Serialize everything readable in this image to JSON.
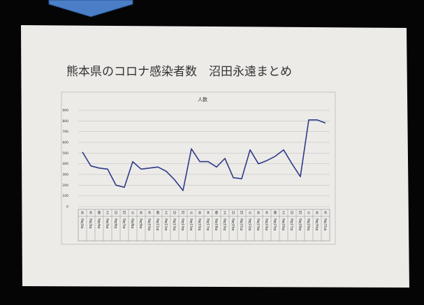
{
  "chart_data": {
    "type": "line",
    "title": "熊本県のコロナ感染者数　沼田永遠まとめ",
    "chart_title": "人数",
    "categories": [
      "8月2日",
      "8月3日",
      "8月4日",
      "8月5日",
      "8月6日",
      "8月7日",
      "8月8日",
      "8月9日",
      "8月10日",
      "8月11日",
      "8月12日",
      "8月13日",
      "8月14日",
      "8月15日",
      "8月16日",
      "8月17日",
      "8月18日",
      "8月19日",
      "8月20日",
      "8月21日",
      "8月22日",
      "8月23日",
      "8月24日",
      "8月25日",
      "8月26日",
      "8月27日",
      "8月28日",
      "8月29日",
      "8月30日",
      "8月31日"
    ],
    "weekdays": [
      "水",
      "木",
      "金",
      "土",
      "日",
      "月",
      "火",
      "水",
      "木",
      "金",
      "土",
      "日",
      "月",
      "火",
      "水",
      "木",
      "金",
      "土",
      "日",
      "月",
      "火",
      "水",
      "木",
      "金",
      "土",
      "日",
      "月",
      "火",
      "水",
      "木"
    ],
    "series": [
      {
        "name": "人数",
        "color": "#2e3a87",
        "values": [
          510,
          380,
          360,
          350,
          200,
          180,
          420,
          350,
          360,
          370,
          330,
          250,
          150,
          540,
          420,
          420,
          370,
          450,
          270,
          260,
          530,
          400,
          430,
          470,
          530,
          400,
          280,
          810,
          810,
          780
        ]
      }
    ],
    "ylim": [
      0,
      900
    ],
    "yticks": [
      0,
      100,
      200,
      300,
      400,
      500,
      600,
      700,
      800,
      900
    ],
    "grid": true
  }
}
